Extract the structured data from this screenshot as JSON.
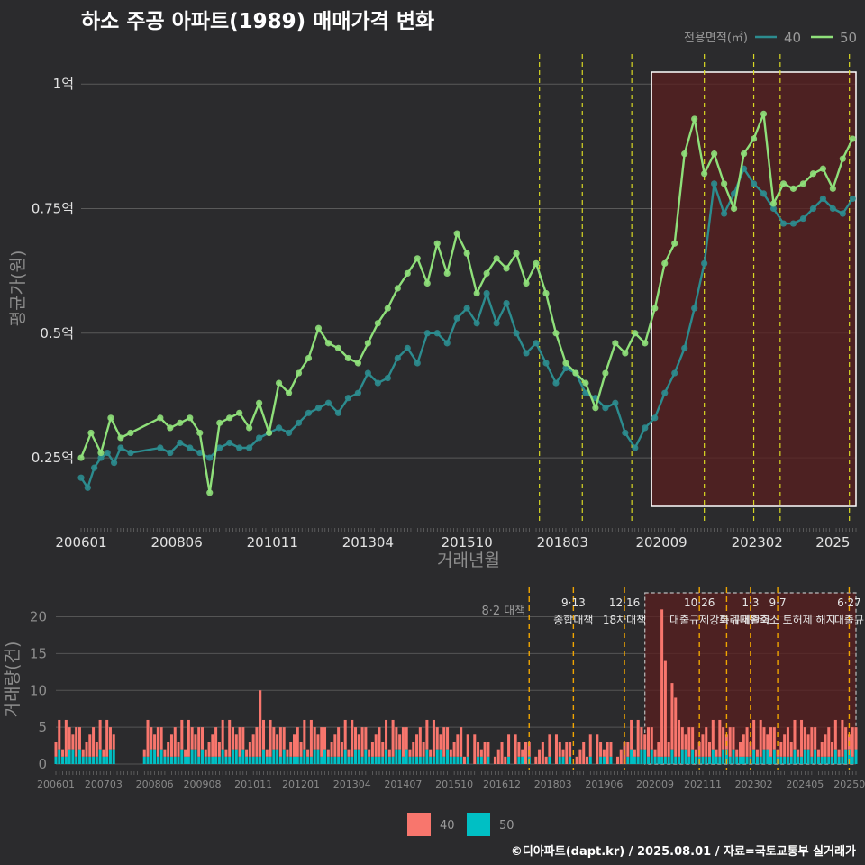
{
  "title": "하소 주공 아파트(1989) 매매가격 변화",
  "footer": "©디아파트(dapt.kr) / 2025.08.01 / 자료=국토교통부 실거래가",
  "colors": {
    "background": "#2b2b2d",
    "series_40": "#2c8c8f",
    "series_50": "#8fe07a",
    "bar_40": "#f8766d",
    "bar_50": "#00bfc4",
    "event_line_top": "#d8d824",
    "event_line_bottom": "#f0a500",
    "highlight_fill": "#5a1f1f"
  },
  "chart_data": [
    {
      "type": "line",
      "ylabel": "평균가(원)",
      "xlabel": "거래년월",
      "x_ticks": [
        "200601",
        "200806",
        "201011",
        "201304",
        "201510",
        "201803",
        "202009",
        "202302",
        "2025"
      ],
      "y_ticks": [
        "0.25억",
        "0.5억",
        "0.75억",
        "1억"
      ],
      "ylim": [
        0.12,
        1.06
      ],
      "xlim": [
        "2006-01",
        "2025-08"
      ],
      "legend": {
        "title": "전용면적(㎡)",
        "position": "top-right",
        "entries": [
          "40",
          "50"
        ]
      },
      "highlight_range": [
        "2020-06",
        "2025-08"
      ],
      "event_lines": [
        "2017-08",
        "2018-09",
        "2019-12",
        "2021-10",
        "2023-01",
        "2023-09",
        "2025-06"
      ],
      "grid": true,
      "series": [
        {
          "name": "40",
          "x": [
            "2006-01",
            "2006-03",
            "2006-05",
            "2006-07",
            "2006-09",
            "2006-11",
            "2007-01",
            "2007-04",
            "2008-01",
            "2008-04",
            "2008-07",
            "2008-10",
            "2009-01",
            "2009-04",
            "2009-07",
            "2009-10",
            "2010-01",
            "2010-04",
            "2010-07",
            "2010-10",
            "2011-01",
            "2011-04",
            "2011-07",
            "2011-10",
            "2012-01",
            "2012-04",
            "2012-07",
            "2012-10",
            "2013-01",
            "2013-04",
            "2013-07",
            "2013-10",
            "2014-01",
            "2014-04",
            "2014-07",
            "2014-10",
            "2015-01",
            "2015-04",
            "2015-07",
            "2015-10",
            "2016-01",
            "2016-04",
            "2016-07",
            "2016-10",
            "2017-01",
            "2017-04",
            "2017-07",
            "2017-10",
            "2018-01",
            "2018-04",
            "2018-07",
            "2018-10",
            "2019-01",
            "2019-04",
            "2019-07",
            "2019-10",
            "2020-01",
            "2020-04",
            "2020-07",
            "2020-10",
            "2021-01",
            "2021-04",
            "2021-07",
            "2021-10",
            "2022-01",
            "2022-04",
            "2022-07",
            "2022-10",
            "2023-01",
            "2023-04",
            "2023-07",
            "2023-10",
            "2024-01",
            "2024-04",
            "2024-07",
            "2024-10",
            "2025-01",
            "2025-04",
            "2025-07"
          ],
          "y": [
            0.21,
            0.19,
            0.23,
            0.25,
            0.26,
            0.24,
            0.27,
            0.26,
            0.27,
            0.26,
            0.28,
            0.27,
            0.26,
            0.25,
            0.27,
            0.28,
            0.27,
            0.27,
            0.29,
            0.3,
            0.31,
            0.3,
            0.32,
            0.34,
            0.35,
            0.36,
            0.34,
            0.37,
            0.38,
            0.42,
            0.4,
            0.41,
            0.45,
            0.47,
            0.44,
            0.5,
            0.5,
            0.48,
            0.53,
            0.55,
            0.52,
            0.58,
            0.52,
            0.56,
            0.5,
            0.46,
            0.48,
            0.44,
            0.4,
            0.43,
            0.42,
            0.38,
            0.37,
            0.35,
            0.36,
            0.3,
            0.27,
            0.31,
            0.33,
            0.38,
            0.42,
            0.47,
            0.55,
            0.64,
            0.8,
            0.74,
            0.78,
            0.83,
            0.8,
            0.78,
            0.75,
            0.72,
            0.72,
            0.73,
            0.75,
            0.77,
            0.75,
            0.74,
            0.77
          ]
        },
        {
          "name": "50",
          "x": [
            "2006-01",
            "2006-04",
            "2006-07",
            "2006-10",
            "2007-01",
            "2007-04",
            "2008-01",
            "2008-04",
            "2008-07",
            "2008-10",
            "2009-01",
            "2009-04",
            "2009-07",
            "2009-10",
            "2010-01",
            "2010-04",
            "2010-07",
            "2010-10",
            "2011-01",
            "2011-04",
            "2011-07",
            "2011-10",
            "2012-01",
            "2012-04",
            "2012-07",
            "2012-10",
            "2013-01",
            "2013-04",
            "2013-07",
            "2013-10",
            "2014-01",
            "2014-04",
            "2014-07",
            "2014-10",
            "2015-01",
            "2015-04",
            "2015-07",
            "2015-10",
            "2016-01",
            "2016-04",
            "2016-07",
            "2016-10",
            "2017-01",
            "2017-04",
            "2017-07",
            "2017-10",
            "2018-01",
            "2018-04",
            "2018-07",
            "2018-10",
            "2019-01",
            "2019-04",
            "2019-07",
            "2019-10",
            "2020-01",
            "2020-04",
            "2020-07",
            "2020-10",
            "2021-01",
            "2021-04",
            "2021-07",
            "2021-10",
            "2022-01",
            "2022-04",
            "2022-07",
            "2022-10",
            "2023-01",
            "2023-04",
            "2023-07",
            "2023-10",
            "2024-01",
            "2024-04",
            "2024-07",
            "2024-10",
            "2025-01",
            "2025-04",
            "2025-07"
          ],
          "y": [
            0.25,
            0.3,
            0.26,
            0.33,
            0.29,
            0.3,
            0.33,
            0.31,
            0.32,
            0.33,
            0.3,
            0.18,
            0.32,
            0.33,
            0.34,
            0.31,
            0.36,
            0.3,
            0.4,
            0.38,
            0.42,
            0.45,
            0.51,
            0.48,
            0.47,
            0.45,
            0.44,
            0.48,
            0.52,
            0.55,
            0.59,
            0.62,
            0.65,
            0.6,
            0.68,
            0.62,
            0.7,
            0.66,
            0.58,
            0.62,
            0.65,
            0.63,
            0.66,
            0.6,
            0.64,
            0.58,
            0.5,
            0.44,
            0.42,
            0.4,
            0.35,
            0.42,
            0.48,
            0.46,
            0.5,
            0.48,
            0.55,
            0.64,
            0.68,
            0.86,
            0.93,
            0.82,
            0.86,
            0.8,
            0.75,
            0.86,
            0.89,
            0.94,
            0.76,
            0.8,
            0.79,
            0.8,
            0.82,
            0.83,
            0.79,
            0.85,
            0.89
          ]
        }
      ]
    },
    {
      "type": "bar",
      "ylabel": "거래량(건)",
      "x_ticks": [
        "200601",
        "200703",
        "200806",
        "200908",
        "201011",
        "201201",
        "201304",
        "201407",
        "201510",
        "201612",
        "201803",
        "201906",
        "202009",
        "202111",
        "202302",
        "202405",
        "202507"
      ],
      "y_ticks": [
        "0",
        "5",
        "10",
        "15",
        "20"
      ],
      "ylim": [
        0,
        23
      ],
      "legend": {
        "position": "bottom",
        "entries": [
          "40",
          "50"
        ]
      },
      "highlight_range": [
        "2020-06",
        "2025-08"
      ],
      "event_lines": [
        "2017-08",
        "2018-09",
        "2019-12",
        "2021-10",
        "2022-06",
        "2023-01",
        "2023-09",
        "2025-06"
      ],
      "annotations": [
        {
          "date": "2017-08",
          "line1": "8·2 대책",
          "line2": ""
        },
        {
          "date": "2018-09",
          "line1": "9·13",
          "line2": "종합대책"
        },
        {
          "date": "2019-12",
          "line1": "12·16",
          "line2": "18차대책"
        },
        {
          "date": "2021-10",
          "line1": "10·26",
          "line2": "대출규제강화"
        },
        {
          "date": "2023-01",
          "line1": "1·3",
          "line2": "규제완화"
        },
        {
          "date": "2023-09",
          "line1": "9·7",
          "line2": "특례대출축소 토허제 해지"
        },
        {
          "date": "2025-06",
          "line1": "6·27",
          "line2": "대출규"
        }
      ],
      "series": [
        {
          "name": "40",
          "pattern": [
            2,
            4,
            1,
            5,
            3,
            2,
            4,
            3,
            1,
            2,
            3,
            4
          ]
        },
        {
          "name": "50",
          "pattern": [
            1,
            2,
            1,
            1,
            2,
            1,
            1,
            2,
            1,
            1,
            1,
            2
          ]
        }
      ],
      "spikes": [
        {
          "date": "2011-01",
          "series": "40",
          "value": 9
        },
        {
          "date": "2020-11",
          "series": "40",
          "value": 20
        },
        {
          "date": "2020-12",
          "series": "40",
          "value": 13
        },
        {
          "date": "2021-02",
          "series": "40",
          "value": 9
        },
        {
          "date": "2021-03",
          "series": "40",
          "value": 8
        }
      ]
    }
  ]
}
